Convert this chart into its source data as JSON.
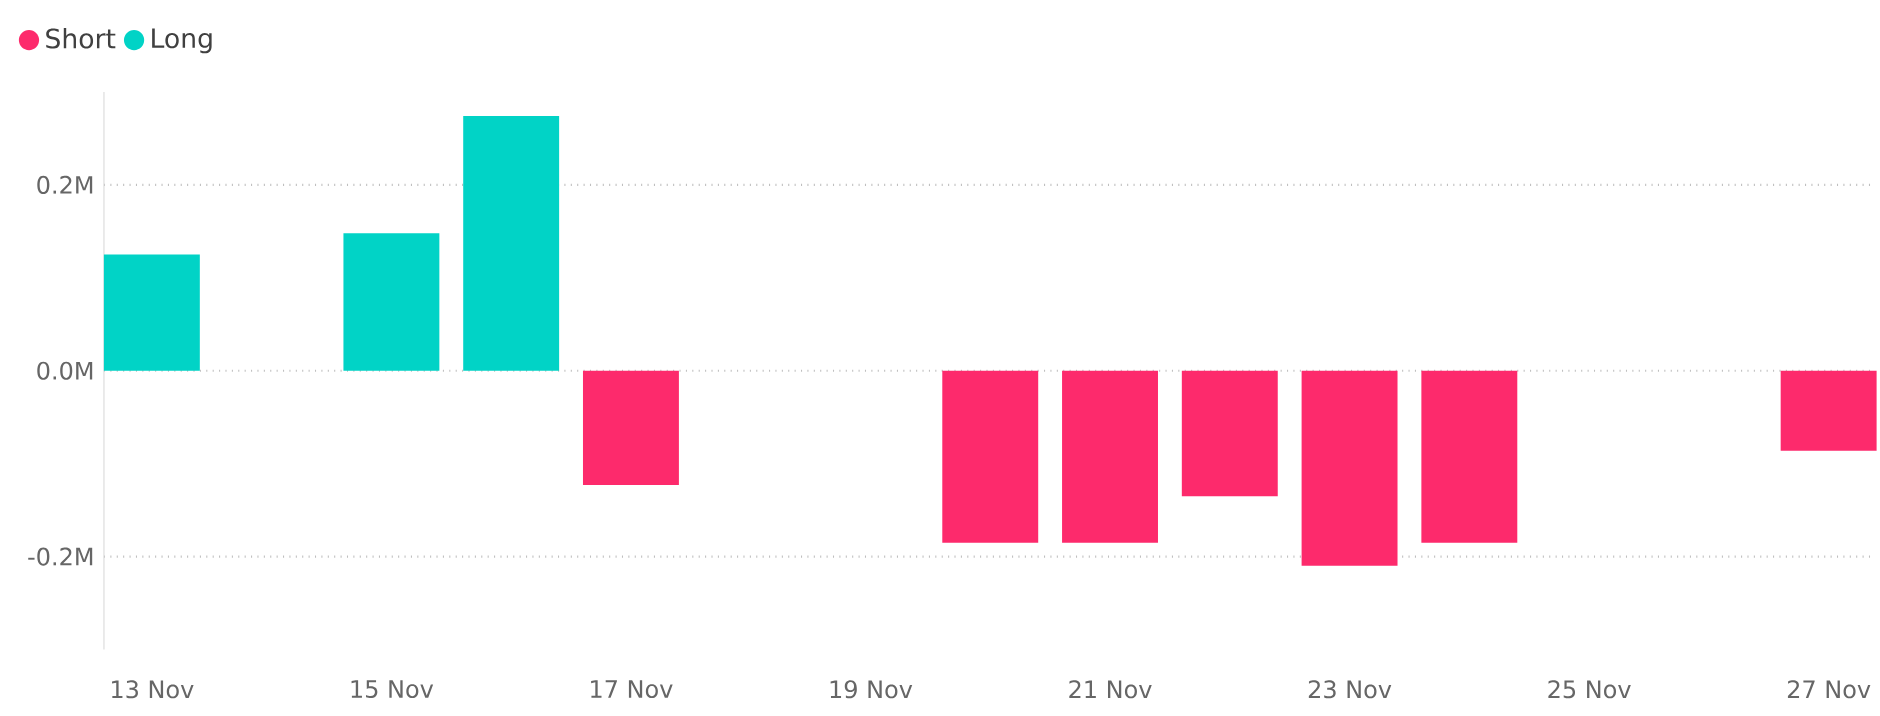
{
  "chart_data": {
    "type": "bar",
    "categories": [
      "13 Nov",
      null,
      "15 Nov",
      null,
      "17 Nov",
      null,
      "19 Nov",
      null,
      "21 Nov",
      null,
      "23 Nov",
      null,
      "25 Nov",
      null,
      "27 Nov"
    ],
    "series": [
      {
        "name": "Short",
        "color": "#fd2a6c",
        "values": [
          null,
          null,
          null,
          null,
          -0.123,
          null,
          null,
          -0.185,
          -0.185,
          -0.135,
          -0.21,
          -0.185,
          null,
          null,
          -0.086
        ]
      },
      {
        "name": "Long",
        "color": "#01d3c6",
        "values": [
          0.125,
          null,
          0.148,
          0.274,
          null,
          null,
          null,
          null,
          null,
          null,
          null,
          null,
          null,
          null,
          null
        ]
      }
    ],
    "ylim": [
      -0.3,
      0.3
    ],
    "yticks": [
      {
        "value": -0.2,
        "label": "-0.2M"
      },
      {
        "value": 0,
        "label": "0.0M"
      },
      {
        "value": 0.2,
        "label": "0.2M"
      }
    ],
    "grid": "y",
    "legend": "top left"
  }
}
